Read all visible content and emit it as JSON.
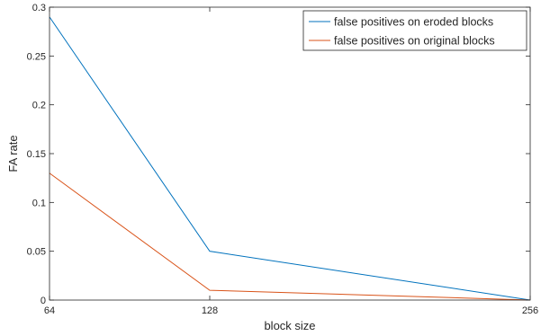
{
  "chart_data": {
    "type": "line",
    "xlabel": "block size",
    "ylabel": "FA rate",
    "x": [
      64,
      128,
      256
    ],
    "x_tick_labels": [
      "64",
      "128",
      "256"
    ],
    "y_ticks": [
      0,
      0.05,
      0.1,
      0.15,
      0.2,
      0.25,
      0.3
    ],
    "y_tick_labels": [
      "0",
      "0.05",
      "0.1",
      "0.15",
      "0.2",
      "0.25",
      "0.3"
    ],
    "ylim": [
      0,
      0.3
    ],
    "grid": false,
    "legend_position": "top-right",
    "series": [
      {
        "name": "false positives on eroded blocks",
        "color": "#0072BD",
        "values": [
          0.29,
          0.05,
          0.0
        ]
      },
      {
        "name": "false positives on original blocks",
        "color": "#D95319",
        "values": [
          0.13,
          0.01,
          0.0
        ]
      }
    ]
  }
}
